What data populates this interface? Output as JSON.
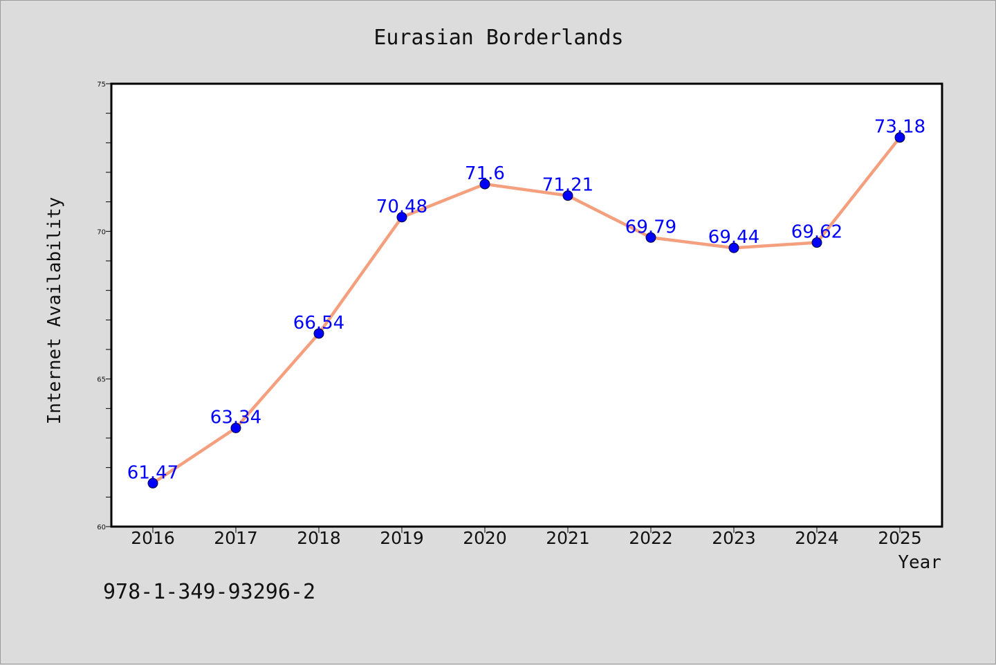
{
  "chart_data": {
    "type": "line",
    "title": "Eurasian Borderlands",
    "xlabel": "Year",
    "ylabel": "Internet Availability",
    "x": [
      "2016",
      "2017",
      "2018",
      "2019",
      "2020",
      "2021",
      "2022",
      "2023",
      "2024",
      "2025"
    ],
    "series": [
      {
        "values": [
          61.47,
          63.34,
          66.54,
          70.48,
          71.6,
          71.21,
          69.79,
          69.44,
          69.62,
          73.18
        ],
        "data_labels": [
          "61.47",
          "63.34",
          "66.54",
          "70.48",
          "71.6",
          "71.21",
          "69.79",
          "69.44",
          "69.62",
          "73.18"
        ],
        "line_color": "#f4a07e",
        "marker_color": "#0000ff"
      }
    ],
    "yticks": [
      "60",
      "65",
      "70",
      "75"
    ],
    "ylim": [
      60,
      75
    ],
    "grid": false,
    "legend": "none"
  },
  "footer": {
    "code": "978-1-349-93296-2"
  },
  "colors": {
    "background": "#dcdcdc",
    "plot_background": "#ffffff",
    "line": "#f4a07e",
    "marker": "#0000ff",
    "data_label": "#0000ff"
  }
}
